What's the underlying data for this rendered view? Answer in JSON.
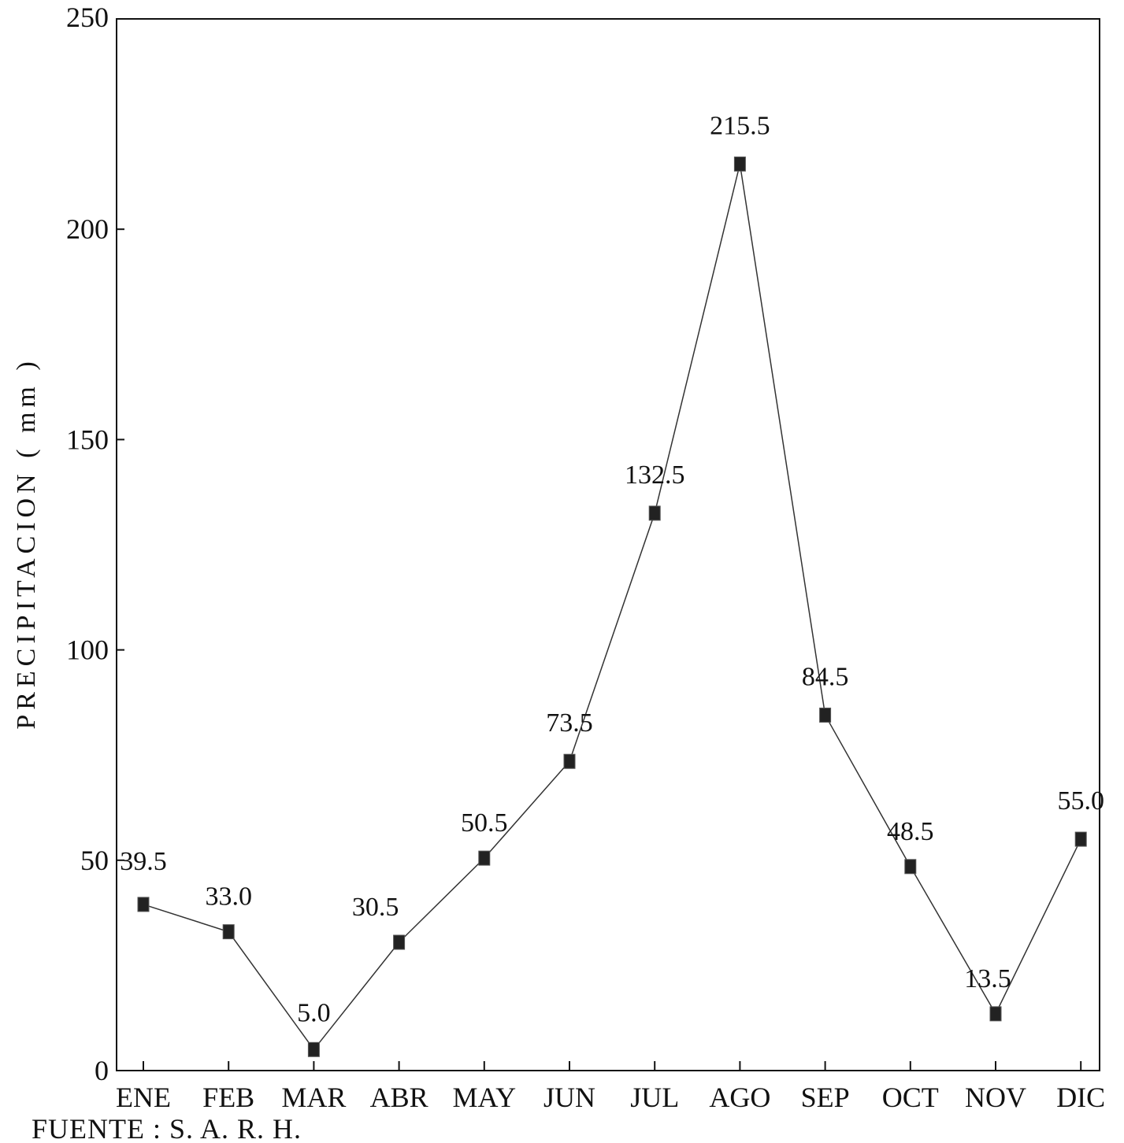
{
  "chart_data": {
    "type": "line",
    "title": "",
    "xlabel": "",
    "ylabel": "PRECIPITACION ( mm )",
    "ylim": [
      0,
      250
    ],
    "yticks": [
      "0",
      "50",
      "100",
      "150",
      "200",
      "250"
    ],
    "categories": [
      "ENE",
      "FEB",
      "MAR",
      "ABR",
      "MAY",
      "JUN",
      "JUL",
      "AGO",
      "SEP",
      "OCT",
      "NOV",
      "DIC"
    ],
    "values": [
      39.5,
      33.0,
      5.0,
      30.5,
      50.5,
      73.5,
      132.5,
      215.5,
      84.5,
      48.5,
      13.5,
      55.0
    ],
    "data_labels": [
      "39.5",
      "33.0",
      "5.0",
      "30.5",
      "50.5",
      "73.5",
      "132.5",
      "215.5",
      "84.5",
      "48.5",
      "13.5",
      "55.0"
    ],
    "grid": false,
    "legend": "none",
    "source": "FUENTE : S. A. R. H."
  },
  "colors": {
    "line": "#333333",
    "marker": "#222222",
    "axis": "#111111"
  }
}
